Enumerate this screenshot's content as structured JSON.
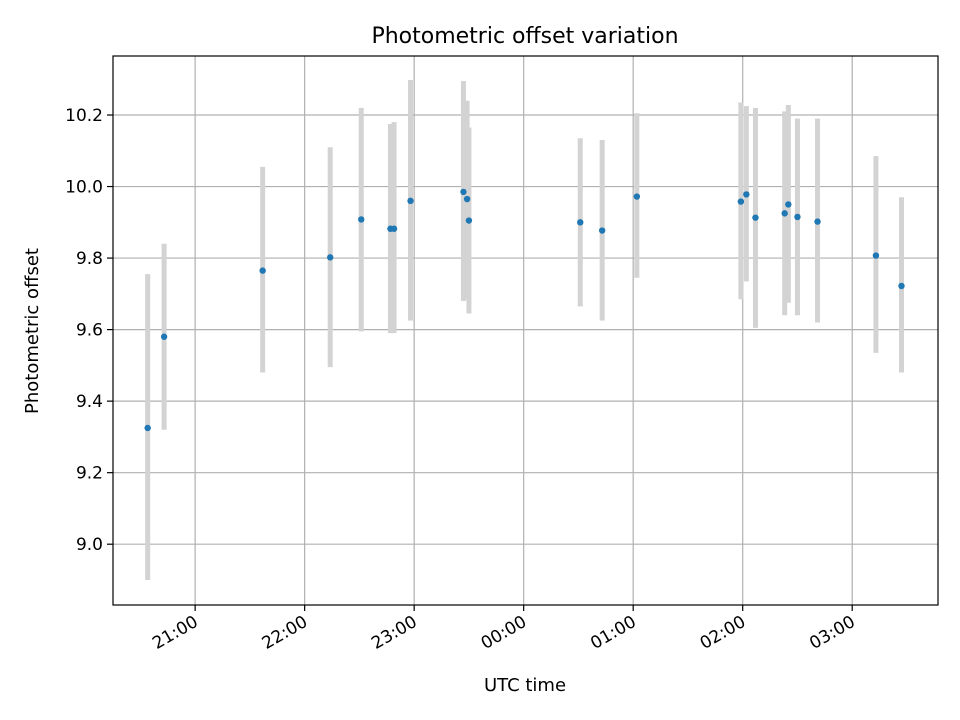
{
  "chart_data": {
    "type": "scatter",
    "title": "Photometric offset variation",
    "xlabel": "UTC time",
    "ylabel": "Photometric offset",
    "xlim": [
      "20:15",
      "27:47"
    ],
    "ylim": [
      8.83,
      10.365
    ],
    "grid": true,
    "x_ticks": [
      "21:00",
      "22:00",
      "23:00",
      "00:00",
      "01:00",
      "02:00",
      "03:00"
    ],
    "y_ticks": [
      "9.0",
      "9.2",
      "9.4",
      "9.6",
      "9.8",
      "10.0",
      "10.2"
    ],
    "colors": {
      "point": "#1f77b4",
      "errorbar": "#d3d3d3",
      "grid": "#b0b0b0"
    },
    "series": [
      {
        "points": [
          {
            "x": "20:34",
            "y": 9.325,
            "low": 8.9,
            "high": 9.755
          },
          {
            "x": "20:43",
            "y": 9.58,
            "low": 9.32,
            "high": 9.84
          },
          {
            "x": "21:37",
            "y": 9.765,
            "low": 9.48,
            "high": 10.055
          },
          {
            "x": "22:14",
            "y": 9.802,
            "low": 9.495,
            "high": 10.11
          },
          {
            "x": "22:31",
            "y": 9.908,
            "low": 9.595,
            "high": 10.22
          },
          {
            "x": "22:47",
            "y": 9.882,
            "low": 9.59,
            "high": 10.175
          },
          {
            "x": "22:49",
            "y": 9.882,
            "low": 9.59,
            "high": 10.18
          },
          {
            "x": "22:58",
            "y": 9.96,
            "low": 9.625,
            "high": 10.298
          },
          {
            "x": "23:27",
            "y": 9.985,
            "low": 9.68,
            "high": 10.295
          },
          {
            "x": "23:29",
            "y": 9.965,
            "low": 9.685,
            "high": 10.24
          },
          {
            "x": "23:30",
            "y": 9.905,
            "low": 9.645,
            "high": 10.165
          },
          {
            "x": "00:31",
            "y": 9.9,
            "low": 9.665,
            "high": 10.135
          },
          {
            "x": "00:43",
            "y": 9.877,
            "low": 9.625,
            "high": 10.13
          },
          {
            "x": "01:02",
            "y": 9.972,
            "low": 9.745,
            "high": 10.205
          },
          {
            "x": "01:59",
            "y": 9.958,
            "low": 9.685,
            "high": 10.235
          },
          {
            "x": "02:02",
            "y": 9.978,
            "low": 9.735,
            "high": 10.225
          },
          {
            "x": "02:07",
            "y": 9.913,
            "low": 9.605,
            "high": 10.22
          },
          {
            "x": "02:23",
            "y": 9.925,
            "low": 9.64,
            "high": 10.21
          },
          {
            "x": "02:25",
            "y": 9.95,
            "low": 9.675,
            "high": 10.228
          },
          {
            "x": "02:30",
            "y": 9.915,
            "low": 9.64,
            "high": 10.19
          },
          {
            "x": "02:41",
            "y": 9.902,
            "low": 9.62,
            "high": 10.19
          },
          {
            "x": "03:13",
            "y": 9.807,
            "low": 9.535,
            "high": 10.085
          },
          {
            "x": "03:27",
            "y": 9.722,
            "low": 9.48,
            "high": 9.97
          }
        ]
      }
    ]
  }
}
